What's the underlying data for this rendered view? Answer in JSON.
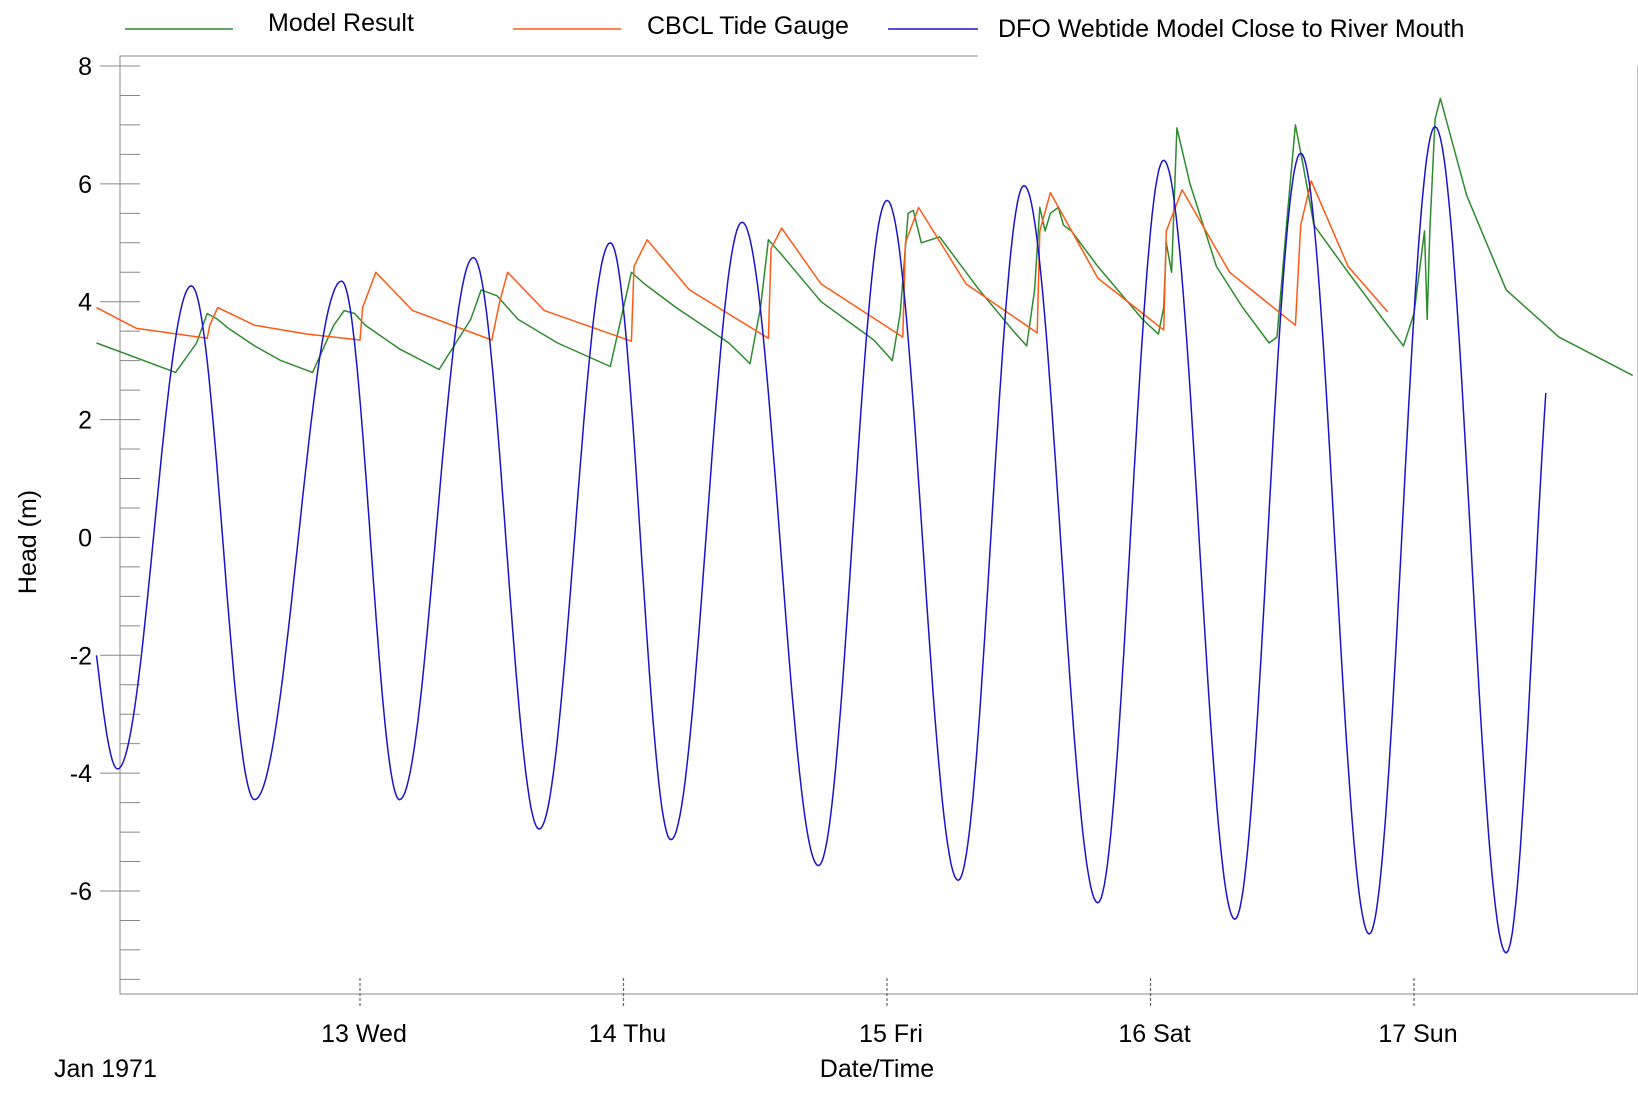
{
  "chart_data": {
    "type": "line",
    "xlabel": "Date/Time",
    "ylabel": "Head (m)",
    "period_label": "Jan 1971",
    "ylim": [
      -7.75,
      8.2
    ],
    "xlim_days": [
      12.0,
      17.83
    ],
    "y_ticks": [
      "8",
      "6",
      "4",
      "2",
      "0",
      "-2",
      "-4",
      "-6"
    ],
    "y_tick_values": [
      8,
      6,
      4,
      2,
      0,
      -2,
      -4,
      -6
    ],
    "x_ticks": [
      {
        "day": 13,
        "label": "13 Wed"
      },
      {
        "day": 14,
        "label": "14 Thu"
      },
      {
        "day": 15,
        "label": "15 Fri"
      },
      {
        "day": 16,
        "label": "16 Sat"
      },
      {
        "day": 17,
        "label": "17 Sun"
      }
    ],
    "legend": [
      "Model Result",
      "CBCL Tide Gauge",
      "DFO Webtide Model Close to River Mouth"
    ],
    "series": [
      {
        "name": "Model Result",
        "color": "#2e8b2e",
        "x": [
          12.0,
          12.3,
          12.38,
          12.42,
          12.46,
          12.5,
          12.6,
          12.7,
          12.82,
          12.9,
          12.94,
          12.98,
          13.02,
          13.15,
          13.3,
          13.42,
          13.46,
          13.52,
          13.6,
          13.75,
          13.95,
          13.98,
          14.03,
          14.08,
          14.2,
          14.4,
          14.48,
          14.52,
          14.55,
          14.6,
          14.75,
          14.95,
          15.02,
          15.05,
          15.08,
          15.1,
          15.13,
          15.2,
          15.35,
          15.48,
          15.53,
          15.56,
          15.58,
          15.6,
          15.62,
          15.65,
          15.67,
          15.7,
          15.8,
          15.97,
          16.03,
          16.05,
          16.06,
          16.08,
          16.1,
          16.15,
          16.25,
          16.35,
          16.45,
          16.48,
          16.52,
          16.55,
          16.58,
          16.62,
          16.75,
          16.9,
          16.96,
          17.0,
          17.04,
          17.05,
          17.06,
          17.08,
          17.1,
          17.2,
          17.35,
          17.55,
          17.83
        ],
        "values": [
          3.3,
          2.8,
          3.3,
          3.8,
          3.7,
          3.55,
          3.25,
          3.0,
          2.8,
          3.6,
          3.85,
          3.8,
          3.6,
          3.2,
          2.85,
          3.7,
          4.2,
          4.1,
          3.7,
          3.3,
          2.9,
          3.5,
          4.5,
          4.3,
          3.9,
          3.3,
          2.95,
          3.9,
          5.05,
          4.8,
          4.0,
          3.35,
          3.0,
          3.8,
          5.5,
          5.55,
          5.0,
          5.1,
          4.2,
          3.5,
          3.25,
          4.2,
          5.6,
          5.2,
          5.5,
          5.6,
          5.3,
          5.2,
          4.6,
          3.7,
          3.45,
          3.9,
          5.0,
          4.5,
          6.95,
          6.0,
          4.6,
          3.9,
          3.3,
          3.4,
          5.5,
          7.0,
          6.3,
          5.3,
          4.5,
          3.6,
          3.25,
          3.8,
          5.2,
          3.7,
          5.2,
          7.1,
          7.45,
          5.8,
          4.2,
          3.4,
          2.75
        ]
      },
      {
        "name": "CBCL Tide Gauge",
        "color": "#ff5a14",
        "x": [
          12.0,
          12.15,
          12.42,
          12.43,
          12.46,
          12.6,
          12.8,
          13.0,
          13.01,
          13.06,
          13.2,
          13.5,
          13.53,
          13.56,
          13.7,
          14.03,
          14.04,
          14.09,
          14.25,
          14.55,
          14.56,
          14.6,
          14.75,
          15.06,
          15.07,
          15.12,
          15.3,
          15.57,
          15.58,
          15.62,
          15.8,
          16.05,
          16.06,
          16.12,
          16.3,
          16.55,
          16.57,
          16.61,
          16.75,
          16.9
        ],
        "values": [
          3.9,
          3.55,
          3.38,
          3.6,
          3.9,
          3.6,
          3.45,
          3.35,
          3.9,
          4.5,
          3.85,
          3.35,
          4.0,
          4.5,
          3.85,
          3.33,
          4.6,
          5.05,
          4.2,
          3.38,
          4.9,
          5.25,
          4.3,
          3.4,
          5.0,
          5.6,
          4.3,
          3.47,
          5.2,
          5.85,
          4.4,
          3.52,
          5.2,
          5.9,
          4.5,
          3.6,
          5.3,
          6.05,
          4.6,
          3.83
        ]
      },
      {
        "name": "DFO Webtide Model Close to River Mouth",
        "color": "#1a14c8",
        "generator": "sine",
        "x_start": 12.0,
        "x_end": 17.5,
        "peaks": [
          {
            "x": 12.36,
            "y": 4.27
          },
          {
            "x": 12.93,
            "y": 4.35
          },
          {
            "x": 13.43,
            "y": 4.75
          },
          {
            "x": 13.95,
            "y": 5.0
          },
          {
            "x": 14.45,
            "y": 5.35
          },
          {
            "x": 15.0,
            "y": 5.72
          },
          {
            "x": 15.52,
            "y": 5.97
          },
          {
            "x": 16.05,
            "y": 6.4
          },
          {
            "x": 16.57,
            "y": 6.52
          },
          {
            "x": 17.08,
            "y": 6.97
          }
        ],
        "troughs": [
          {
            "x": 12.08,
            "y": -3.93
          },
          {
            "x": 12.6,
            "y": -4.45
          },
          {
            "x": 13.15,
            "y": -4.45
          },
          {
            "x": 13.68,
            "y": -4.95
          },
          {
            "x": 14.18,
            "y": -5.13
          },
          {
            "x": 14.74,
            "y": -5.57
          },
          {
            "x": 15.27,
            "y": -5.82
          },
          {
            "x": 15.8,
            "y": -6.2
          },
          {
            "x": 16.32,
            "y": -6.48
          },
          {
            "x": 16.83,
            "y": -6.73
          },
          {
            "x": 17.35,
            "y": -7.05
          }
        ],
        "start_y": -2.0,
        "end_y": 2.45
      }
    ]
  }
}
